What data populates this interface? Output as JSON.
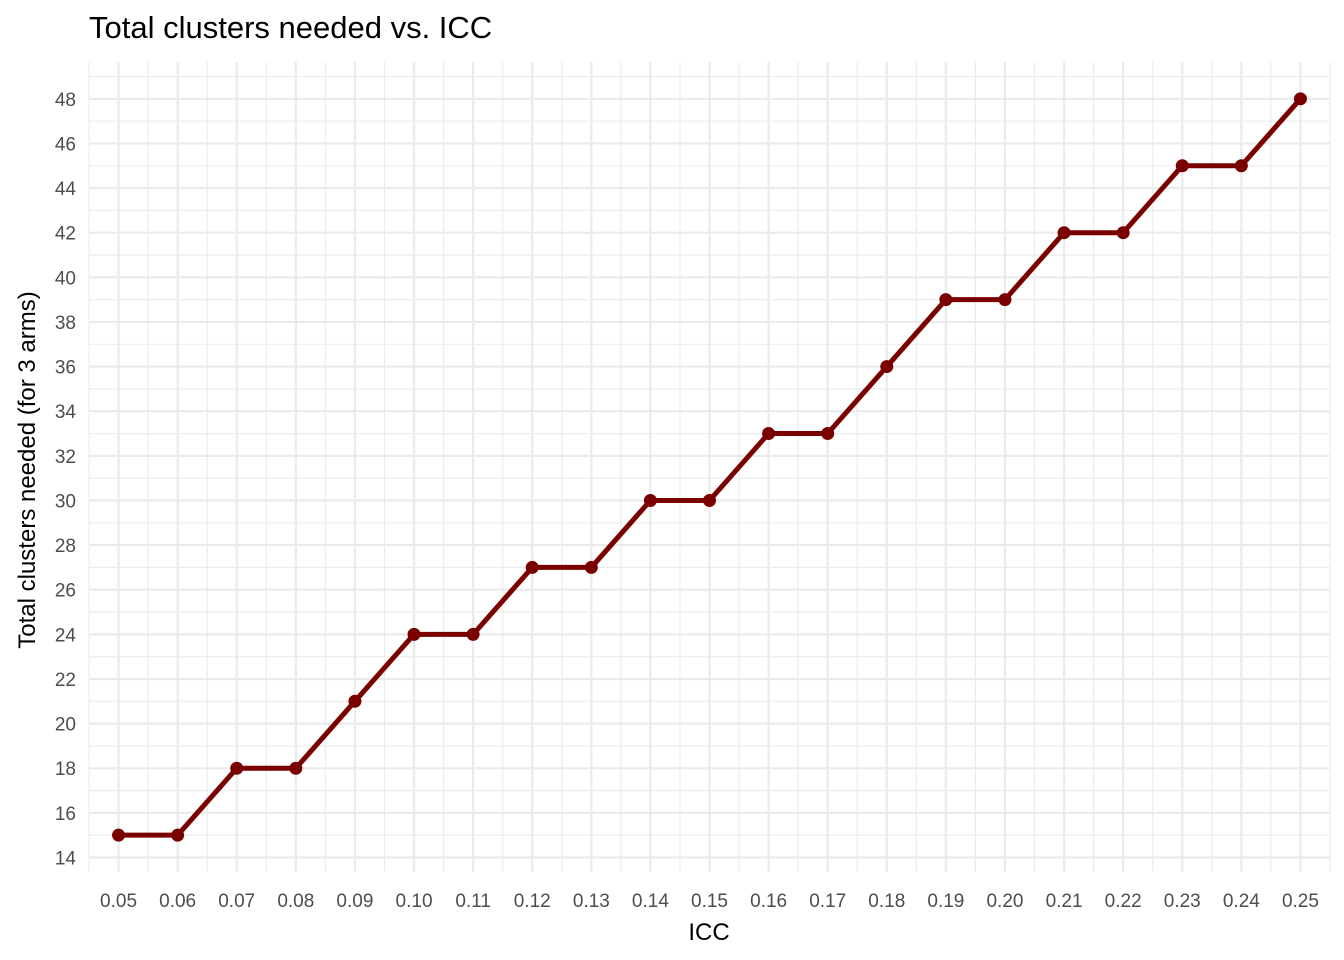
{
  "chart_data": {
    "type": "line",
    "title": "Total clusters needed vs. ICC",
    "xlabel": "ICC",
    "ylabel": "Total clusters needed (for 3 arms)",
    "x": [
      0.05,
      0.06,
      0.07,
      0.08,
      0.09,
      0.1,
      0.11,
      0.12,
      0.13,
      0.14,
      0.15,
      0.16,
      0.17,
      0.18,
      0.19,
      0.2,
      0.21,
      0.22,
      0.23,
      0.24,
      0.25
    ],
    "x_tick_labels": [
      "0.05",
      "0.06",
      "0.07",
      "0.08",
      "0.09",
      "0.10",
      "0.11",
      "0.12",
      "0.13",
      "0.14",
      "0.15",
      "0.16",
      "0.17",
      "0.18",
      "0.19",
      "0.20",
      "0.21",
      "0.22",
      "0.23",
      "0.24",
      "0.25"
    ],
    "series": [
      {
        "values": [
          15,
          15,
          18,
          18,
          21,
          24,
          24,
          27,
          27,
          30,
          30,
          33,
          33,
          36,
          39,
          39,
          42,
          42,
          45,
          45,
          48
        ]
      }
    ],
    "y_ticks": [
      14,
      16,
      18,
      20,
      22,
      24,
      26,
      28,
      30,
      32,
      34,
      36,
      38,
      40,
      42,
      44,
      46,
      48
    ],
    "xlim": [
      0.045,
      0.255
    ],
    "ylim": [
      13.35,
      49.65
    ],
    "grid": true,
    "legend": "none",
    "colors": {
      "line": "#7a0000",
      "point": "#7a0000",
      "grid": "#ebebeb",
      "tick_text": "#4d4d4d"
    }
  }
}
